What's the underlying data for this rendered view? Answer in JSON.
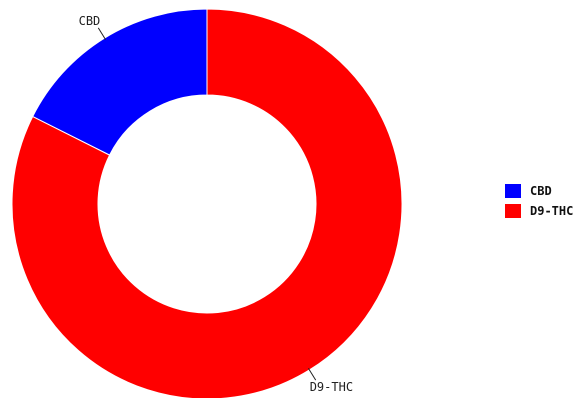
{
  "chart_data": {
    "type": "pie",
    "variant": "donut",
    "title": "",
    "categories": [
      "CBD",
      "D9-THC"
    ],
    "values": [
      17.6,
      82.4
    ],
    "unit": "%",
    "colors": [
      "#0000ff",
      "#ff0000"
    ],
    "legend": {
      "placement": "right",
      "entries": [
        "CBD",
        "D9-THC"
      ]
    }
  }
}
